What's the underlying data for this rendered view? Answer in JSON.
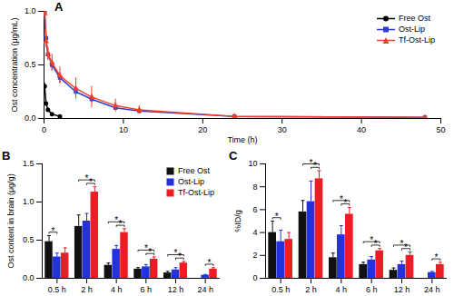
{
  "chart_data": [
    {
      "type": "line",
      "title": "A",
      "x_label": "Time (h)",
      "y_label": "Ost concentration (μg/mL)",
      "xlim": [
        0,
        50
      ],
      "xticks": [
        0,
        10,
        20,
        30,
        40,
        50
      ],
      "ylim": [
        0,
        1
      ],
      "yticks": [
        {
          "value": 0,
          "label": "0.0"
        },
        {
          "value": 0.5,
          "label": "0.5"
        },
        {
          "value": 1,
          "label": "1.0"
        }
      ],
      "legend": "top-right",
      "x": [
        0.083,
        0.25,
        0.5,
        1,
        2,
        4,
        6,
        9,
        12,
        24,
        48
      ],
      "series": [
        {
          "name": "Free Ost",
          "color": "#000000",
          "marker": "circle",
          "values": [
            0.3,
            0.14,
            0.08,
            0.04,
            0.02,
            null,
            null,
            null,
            null,
            null,
            null
          ],
          "errors": [
            0.03,
            0.02,
            0.01,
            0.01,
            0.005,
            null,
            null,
            null,
            null,
            null,
            null
          ]
        },
        {
          "name": "Ost-Lip",
          "color": "#2b3bd6",
          "marker": "square",
          "values": [
            1.0,
            0.75,
            0.6,
            0.5,
            0.38,
            0.25,
            0.18,
            0.1,
            0.07,
            0.02,
            0.01
          ],
          "errors": [
            0.05,
            0.06,
            0.05,
            0.05,
            0.05,
            0.04,
            0.03,
            0.02,
            0.02,
            0.01,
            0.005
          ]
        },
        {
          "name": "Tf-Ost-Lip",
          "color": "#f0402b",
          "marker": "triangle",
          "values": [
            0.98,
            0.72,
            0.6,
            0.52,
            0.4,
            0.28,
            0.2,
            0.12,
            0.08,
            0.02,
            0.01
          ],
          "errors": [
            0.05,
            0.06,
            0.06,
            0.08,
            0.08,
            0.1,
            0.1,
            0.06,
            0.04,
            0.01,
            0.005
          ]
        }
      ]
    },
    {
      "type": "bar",
      "title": "B",
      "y_label": "Ost content in brain (μg/g)",
      "categories": [
        "0.5 h",
        "2 h",
        "4 h",
        "6 h",
        "12 h",
        "24 h"
      ],
      "ylim": [
        0,
        1.5
      ],
      "yticks": [
        {
          "value": 0,
          "label": "0.0"
        },
        {
          "value": 0.5,
          "label": "0.5"
        },
        {
          "value": 1,
          "label": "1.0"
        },
        {
          "value": 1.5,
          "label": "1.5"
        }
      ],
      "legend": "top-right",
      "series": [
        {
          "name": "Free Ost",
          "color": "#111111",
          "values": [
            0.48,
            0.68,
            0.17,
            0.12,
            0.07,
            0
          ],
          "errors": [
            0.08,
            0.15,
            0.03,
            0.02,
            0.02,
            0
          ]
        },
        {
          "name": "Ost-Lip",
          "color": "#2233dd",
          "values": [
            0.28,
            0.75,
            0.38,
            0.15,
            0.11,
            0.04
          ],
          "errors": [
            0.05,
            0.1,
            0.05,
            0.03,
            0.03,
            0.01
          ]
        },
        {
          "name": "Tf-Ost-Lip",
          "color": "#ee1c24",
          "values": [
            0.33,
            1.13,
            0.6,
            0.25,
            0.2,
            0.12
          ],
          "errors": [
            0.07,
            0.07,
            0.05,
            0.03,
            0.02,
            0.02
          ]
        }
      ],
      "annotations": [
        {
          "category": "0.5 h",
          "from": "Free Ost",
          "to": "Ost-Lip",
          "text": "*"
        },
        {
          "category": "2 h",
          "from": "Ost-Lip",
          "to": "Tf-Ost-Lip",
          "text": "*"
        },
        {
          "category": "2 h",
          "from": "Free Ost",
          "to": "Tf-Ost-Lip",
          "text": "*"
        },
        {
          "category": "4 h",
          "from": "Ost-Lip",
          "to": "Tf-Ost-Lip",
          "text": "*"
        },
        {
          "category": "4 h",
          "from": "Free Ost",
          "to": "Tf-Ost-Lip",
          "text": "*"
        },
        {
          "category": "6 h",
          "from": "Ost-Lip",
          "to": "Tf-Ost-Lip",
          "text": "*"
        },
        {
          "category": "6 h",
          "from": "Free Ost",
          "to": "Tf-Ost-Lip",
          "text": "*"
        },
        {
          "category": "12 h",
          "from": "Ost-Lip",
          "to": "Tf-Ost-Lip",
          "text": "*"
        },
        {
          "category": "12 h",
          "from": "Free Ost",
          "to": "Tf-Ost-Lip",
          "text": "*"
        },
        {
          "category": "24 h",
          "from": "Ost-Lip",
          "to": "Tf-Ost-Lip",
          "text": "*"
        }
      ]
    },
    {
      "type": "bar",
      "title": "C",
      "y_label": "%ID/g",
      "categories": [
        "0.5 h",
        "2 h",
        "4 h",
        "6 h",
        "12 h",
        "24 h"
      ],
      "ylim": [
        0,
        10
      ],
      "yticks": [
        0,
        2,
        4,
        6,
        8,
        10
      ],
      "series": [
        {
          "name": "Free Ost",
          "color": "#111111",
          "values": [
            4.0,
            5.8,
            1.8,
            1.2,
            0.7,
            0
          ],
          "errors": [
            1.0,
            1.0,
            0.4,
            0.2,
            0.2,
            0
          ]
        },
        {
          "name": "Ost-Lip",
          "color": "#2233dd",
          "values": [
            3.2,
            6.7,
            3.8,
            1.6,
            1.2,
            0.5
          ],
          "errors": [
            1.0,
            1.8,
            0.8,
            0.3,
            0.3,
            0.1
          ]
        },
        {
          "name": "Tf-Ost-Lip",
          "color": "#ee1c24",
          "values": [
            3.4,
            8.7,
            5.6,
            2.4,
            2.0,
            1.2
          ],
          "errors": [
            0.6,
            0.7,
            0.6,
            0.2,
            0.3,
            0.2
          ]
        }
      ],
      "annotations": [
        {
          "category": "0.5 h",
          "from": "Free Ost",
          "to": "Ost-Lip",
          "text": "*"
        },
        {
          "category": "2 h",
          "from": "Ost-Lip",
          "to": "Tf-Ost-Lip",
          "text": "*"
        },
        {
          "category": "2 h",
          "from": "Free Ost",
          "to": "Tf-Ost-Lip",
          "text": "*"
        },
        {
          "category": "4 h",
          "from": "Ost-Lip",
          "to": "Tf-Ost-Lip",
          "text": "*"
        },
        {
          "category": "4 h",
          "from": "Free Ost",
          "to": "Tf-Ost-Lip",
          "text": "*"
        },
        {
          "category": "6 h",
          "from": "Ost-Lip",
          "to": "Tf-Ost-Lip",
          "text": "*"
        },
        {
          "category": "6 h",
          "from": "Free Ost",
          "to": "Tf-Ost-Lip",
          "text": "*"
        },
        {
          "category": "12 h",
          "from": "Ost-Lip",
          "to": "Tf-Ost-Lip",
          "text": "*"
        },
        {
          "category": "12 h",
          "from": "Free Ost",
          "to": "Tf-Ost-Lip",
          "text": "*"
        },
        {
          "category": "24 h",
          "from": "Ost-Lip",
          "to": "Tf-Ost-Lip",
          "text": "*"
        }
      ]
    }
  ]
}
